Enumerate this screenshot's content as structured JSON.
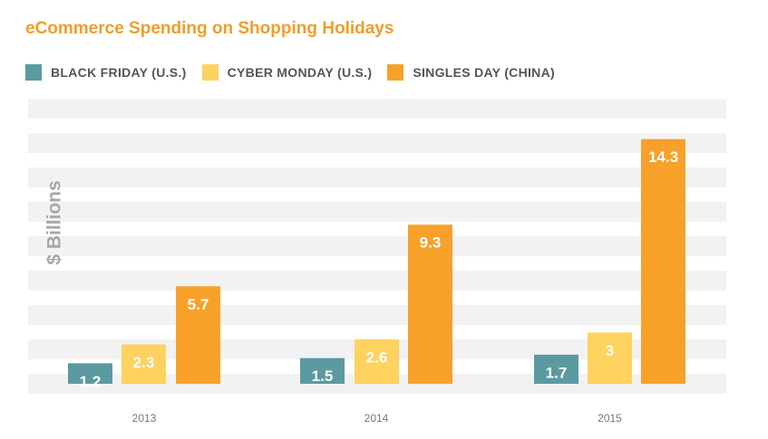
{
  "chart_data": {
    "type": "bar",
    "title": "eCommerce Spending on Shopping Holidays",
    "ylabel": "$ Billions",
    "xlabel": "",
    "categories": [
      "2013",
      "2014",
      "2015"
    ],
    "series": [
      {
        "name": "BLACK FRIDAY (U.S.)",
        "values": [
          1.2,
          1.5,
          1.7
        ],
        "color": "#5b9aa0"
      },
      {
        "name": "CYBER MONDAY (U.S.)",
        "values": [
          2.3,
          2.6,
          3
        ],
        "color": "#fdd25f"
      },
      {
        "name": "SINGLES DAY (CHINA)",
        "values": [
          5.7,
          9.3,
          14.3
        ],
        "color": "#f7a12b"
      }
    ],
    "value_labels": [
      [
        "1.2",
        "1.5",
        "1.7"
      ],
      [
        "2.3",
        "2.6",
        "3"
      ],
      [
        "5.7",
        "9.3",
        "14.3"
      ]
    ],
    "ylim": [
      0,
      14.5
    ],
    "grid": "horizontal bands",
    "legend_position": "top-left"
  },
  "colors": {
    "title": "#f29c2b",
    "band": "#f2f2f2",
    "legend_text": "#555555",
    "axis_label": "#a8a8a8",
    "tick_label": "#777777"
  }
}
